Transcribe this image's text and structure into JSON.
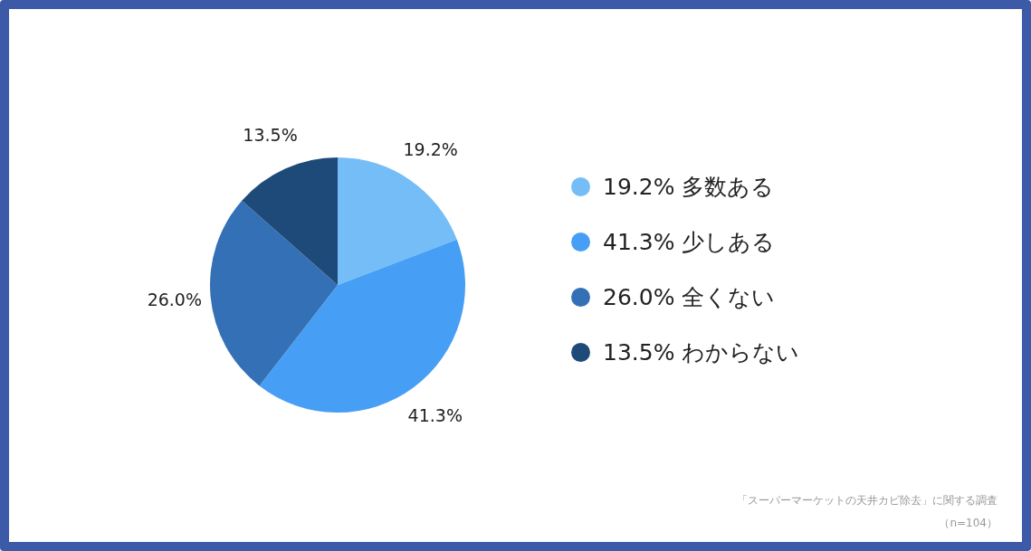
{
  "chart_data": {
    "type": "pie",
    "categories": [
      "多数ある",
      "少しある",
      "全くない",
      "わからない"
    ],
    "values": [
      19.2,
      41.3,
      26.0,
      13.5
    ],
    "value_labels": [
      "19.2%",
      "41.3%",
      "26.0%",
      "13.5%"
    ],
    "colors": [
      "#74bdf7",
      "#479ff5",
      "#3470b5",
      "#1e4a7a"
    ],
    "legend": "right",
    "annotations": [
      "「スーパーマーケットの天井カビ除去」に関する調査",
      "（n=104）"
    ]
  }
}
